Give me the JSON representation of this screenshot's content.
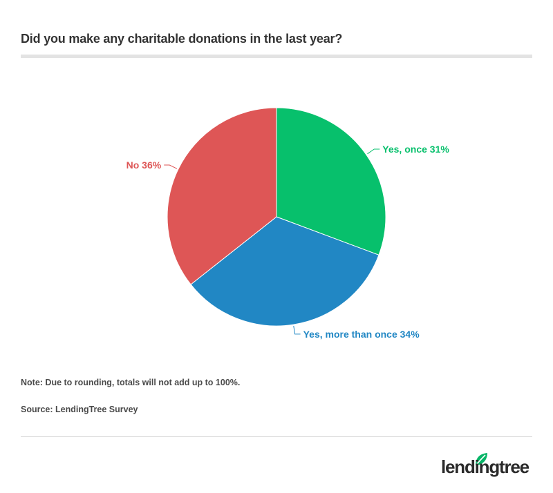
{
  "chart_data": {
    "type": "pie",
    "title": "Did you make any charitable donations in the last year?",
    "slices": [
      {
        "label": "Yes, once",
        "value": 31,
        "value_label": "31%",
        "color": "#07c06c"
      },
      {
        "label": "Yes, more than once",
        "value": 34,
        "value_label": "34%",
        "color": "#2187c4"
      },
      {
        "label": "No",
        "value": 36,
        "value_label": "36%",
        "color": "#de5656"
      }
    ],
    "start_angle": "12 o'clock",
    "direction": "clockwise",
    "note": "Note: Due to rounding, totals will not add up to 100%.",
    "source": "Source: LendingTree Survey"
  },
  "brand": {
    "logo_text": "lendingtree",
    "leaf_icon": "leaf-icon",
    "leaf_color": "#07b567"
  }
}
